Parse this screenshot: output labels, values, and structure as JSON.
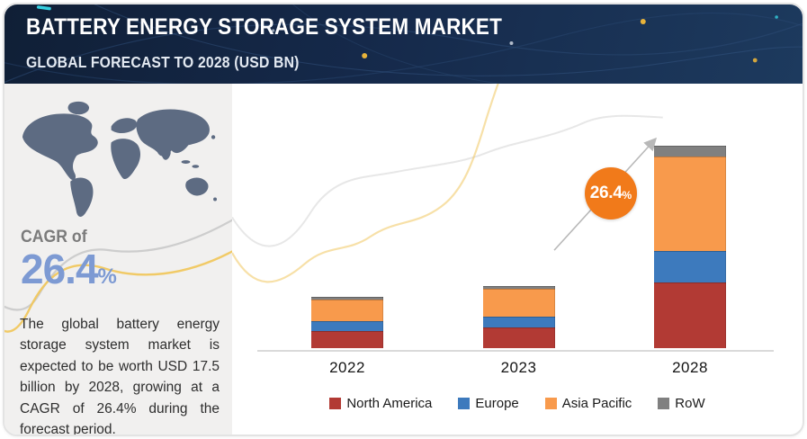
{
  "header": {
    "title": "BATTERY ENERGY STORAGE SYSTEM MARKET",
    "subtitle": "GLOBAL FORECAST TO 2028 (USD BN)"
  },
  "sidebar": {
    "cagr_label": "CAGR of",
    "cagr_value": "26.4",
    "cagr_unit": "%",
    "description": "The global battery energy storage system market is expected to be worth USD 17.5 billion by 2028, growing at a CAGR of 26.4% during the forecast period."
  },
  "chart": {
    "growth_badge_value": "26.4",
    "growth_badge_unit": "%"
  },
  "chart_data": {
    "type": "bar",
    "stacked": true,
    "title": "BATTERY ENERGY STORAGE SYSTEM MARKET — GLOBAL FORECAST TO 2028 (USD BN)",
    "categories": [
      "2022",
      "2023",
      "2028"
    ],
    "series": [
      {
        "name": "North America",
        "color": "#b23a34",
        "values": [
          1.5,
          1.8,
          5.7
        ]
      },
      {
        "name": "Europe",
        "color": "#3d7abd",
        "values": [
          0.8,
          0.95,
          2.7
        ]
      },
      {
        "name": "Asia Pacific",
        "color": "#f89a4c",
        "values": [
          1.9,
          2.35,
          8.2
        ]
      },
      {
        "name": "RoW",
        "color": "#808080",
        "values": [
          0.25,
          0.3,
          0.9
        ]
      }
    ],
    "totals": [
      4.45,
      5.4,
      17.5
    ],
    "xlabel": "",
    "ylabel": "",
    "ylim": [
      0,
      18
    ],
    "grid": false,
    "legend_position": "bottom",
    "annotation": "26.4%"
  },
  "colors": {
    "header_bg": "#15294a",
    "accent_orange": "#f17a1a",
    "cagr_blue": "#7d9ad3",
    "panel_bg": "#f1f0ef",
    "map_fill": "#5d6b82",
    "curve_yellow": "#f0c75e",
    "curve_gray": "#c9c9c9",
    "axis_gray": "#dadada"
  }
}
